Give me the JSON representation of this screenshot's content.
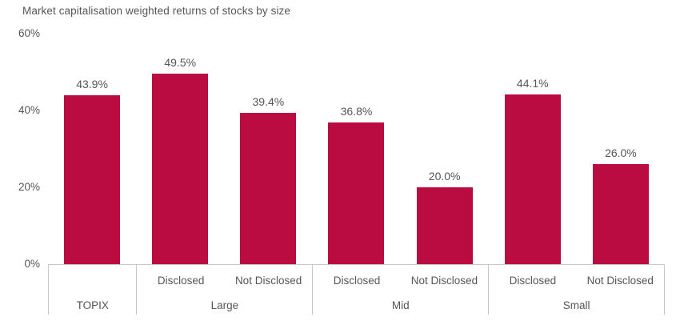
{
  "colors": {
    "bar": "#BB0C41",
    "axis_line": "#C7C9C7",
    "text": "#54565B",
    "background": "#FFFFFF"
  },
  "chart_data": {
    "type": "bar",
    "title": "Market capitalisation weighted returns of stocks by size",
    "xlabel": "",
    "ylabel": "",
    "unit": "%",
    "ylim": [
      0,
      60
    ],
    "grid": false,
    "legend": "none",
    "yticks": [
      {
        "value": 60,
        "label": "60%"
      },
      {
        "value": 40,
        "label": "40%"
      },
      {
        "value": 20,
        "label": "20%"
      },
      {
        "value": 0,
        "label": "0%"
      }
    ],
    "groups": [
      {
        "label": "TOPIX",
        "bars": [
          {
            "sublabel": "",
            "value": 43.9,
            "data_label": "43.9%"
          }
        ]
      },
      {
        "label": "Large",
        "bars": [
          {
            "sublabel": "Disclosed",
            "value": 49.5,
            "data_label": "49.5%"
          },
          {
            "sublabel": "Not Disclosed",
            "value": 39.4,
            "data_label": "39.4%"
          }
        ]
      },
      {
        "label": "Mid",
        "bars": [
          {
            "sublabel": "Disclosed",
            "value": 36.8,
            "data_label": "36.8%"
          },
          {
            "sublabel": "Not Disclosed",
            "value": 20.0,
            "data_label": "20.0%"
          }
        ]
      },
      {
        "label": "Small",
        "bars": [
          {
            "sublabel": "Disclosed",
            "value": 44.1,
            "data_label": "44.1%"
          },
          {
            "sublabel": "Not Disclosed",
            "value": 26.0,
            "data_label": "26.0%"
          }
        ]
      }
    ]
  }
}
